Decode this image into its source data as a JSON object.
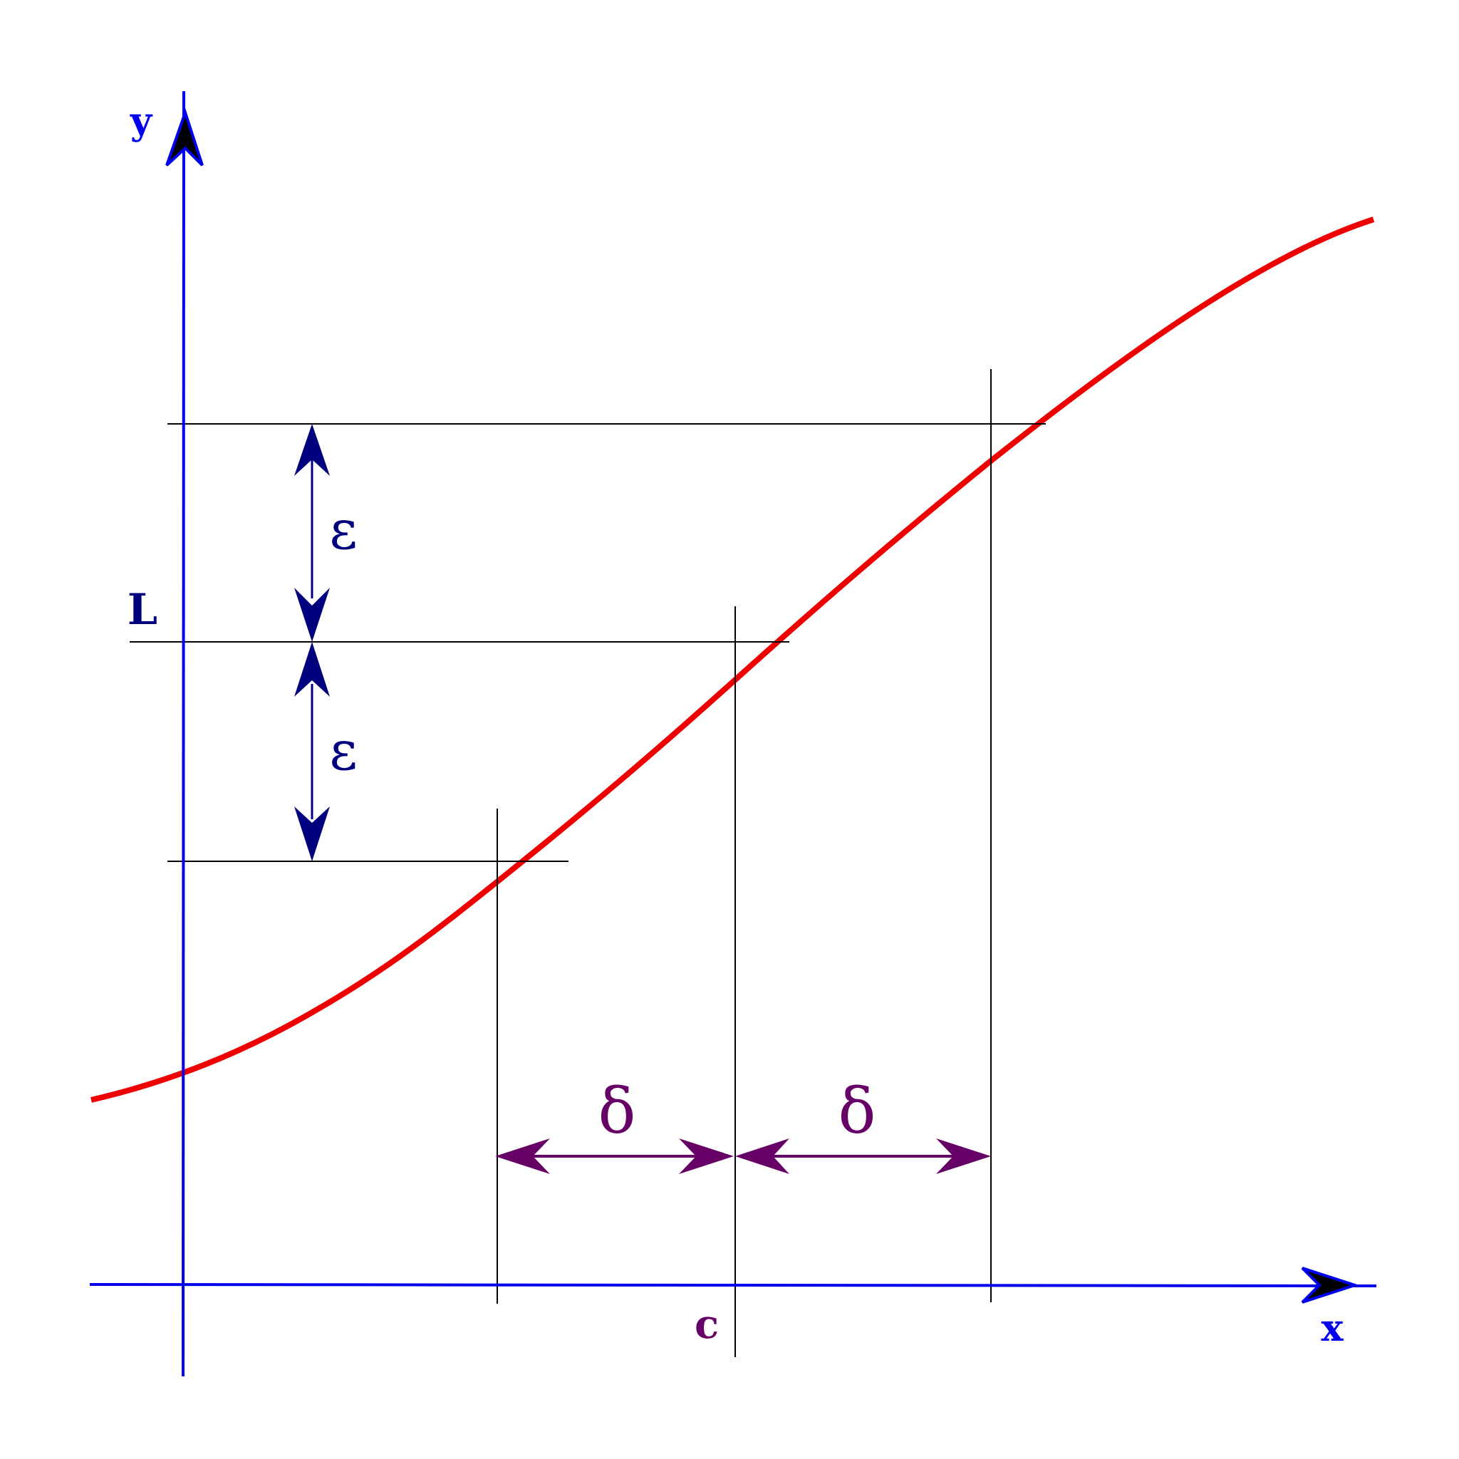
{
  "labels": {
    "x_axis": "x",
    "y_axis": "y",
    "limit": "L",
    "point": "c",
    "epsilon_upper": "ε",
    "epsilon_lower": "ε",
    "delta_left": "δ",
    "delta_right": "δ"
  },
  "colors": {
    "axes": "#0000ee",
    "curve": "#ee0000",
    "guides": "#000000",
    "epsilon": "#00007f",
    "delta": "#660066",
    "background": "#ffffff"
  },
  "icons": {
    "x_axis_head": "arrowhead-right-icon",
    "y_axis_head": "arrowhead-up-icon"
  }
}
